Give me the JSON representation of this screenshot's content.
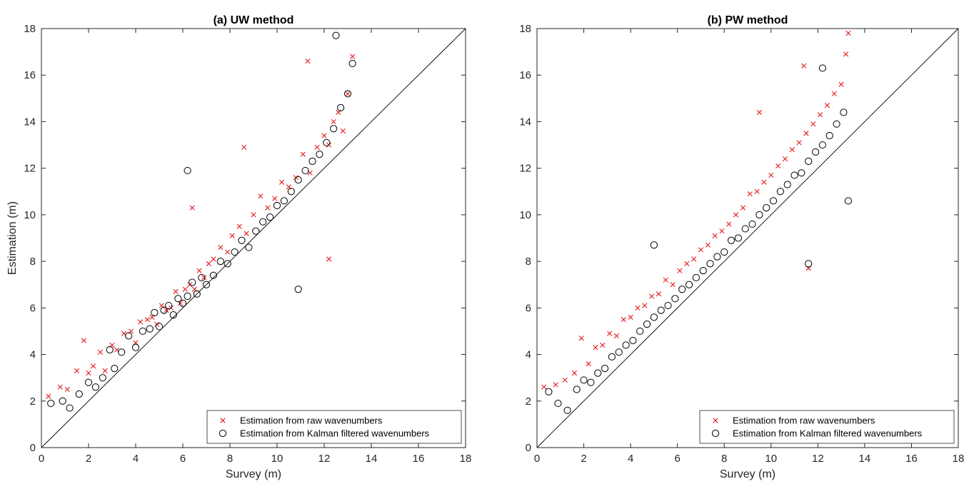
{
  "chart_data": [
    {
      "type": "scatter",
      "title": "(a) UW method",
      "xlabel": "Survey (m)",
      "ylabel": "Estimation (m)",
      "xlim": [
        0,
        18
      ],
      "ylim": [
        0,
        18
      ],
      "xticks": [
        0,
        2,
        4,
        6,
        8,
        10,
        12,
        14,
        16,
        18
      ],
      "yticks": [
        0,
        2,
        4,
        6,
        8,
        10,
        12,
        14,
        16,
        18
      ],
      "reference_line": {
        "from": [
          0,
          0
        ],
        "to": [
          18,
          18
        ]
      },
      "legend_position": "bottom-right",
      "legend": [
        "Estimation from raw wavenumbers",
        "Estimation from Kalman filtered wavenumbers"
      ],
      "series": [
        {
          "name": "Estimation from raw wavenumbers",
          "marker": "x",
          "color": "#e41a1c",
          "x": [
            0.3,
            0.8,
            1.1,
            1.5,
            1.8,
            2.0,
            2.2,
            2.5,
            2.7,
            3.0,
            3.2,
            3.5,
            3.8,
            4.0,
            4.2,
            4.5,
            4.7,
            4.9,
            5.1,
            5.3,
            5.5,
            5.7,
            5.9,
            6.1,
            6.3,
            6.5,
            6.7,
            6.9,
            7.1,
            7.3,
            7.6,
            7.9,
            8.1,
            8.4,
            8.7,
            9.0,
            9.3,
            9.6,
            9.9,
            10.2,
            10.5,
            10.8,
            11.1,
            11.4,
            11.7,
            12.0,
            12.2,
            12.4,
            12.6,
            12.8,
            13.0,
            13.2,
            6.4,
            8.6,
            11.3,
            12.2
          ],
          "y": [
            2.2,
            2.6,
            2.5,
            3.3,
            4.6,
            3.2,
            3.5,
            4.1,
            3.3,
            4.4,
            4.2,
            4.9,
            5.0,
            4.5,
            5.4,
            5.5,
            5.6,
            5.3,
            6.1,
            5.9,
            6.0,
            6.7,
            6.2,
            6.8,
            7.0,
            6.8,
            7.6,
            7.3,
            7.9,
            8.1,
            8.6,
            8.4,
            9.1,
            9.5,
            9.2,
            10.0,
            10.8,
            10.3,
            10.7,
            11.4,
            11.2,
            11.6,
            12.6,
            11.8,
            12.9,
            13.4,
            13.0,
            14.0,
            14.4,
            13.6,
            15.2,
            16.8,
            10.3,
            12.9,
            16.6,
            8.1
          ]
        },
        {
          "name": "Estimation from Kalman filtered wavenumbers",
          "marker": "o",
          "color": "#000000",
          "x": [
            0.4,
            0.9,
            1.2,
            1.6,
            2.0,
            2.3,
            2.6,
            2.9,
            3.1,
            3.4,
            3.7,
            4.0,
            4.3,
            4.6,
            4.8,
            5.0,
            5.2,
            5.4,
            5.6,
            5.8,
            6.0,
            6.2,
            6.4,
            6.6,
            6.8,
            7.0,
            7.3,
            7.6,
            7.9,
            8.2,
            8.5,
            8.8,
            9.1,
            9.4,
            9.7,
            10.0,
            10.3,
            10.6,
            10.9,
            11.2,
            11.5,
            11.8,
            12.1,
            12.4,
            12.7,
            13.0,
            13.2,
            6.2,
            10.9,
            12.5
          ],
          "y": [
            1.9,
            2.0,
            1.7,
            2.3,
            2.8,
            2.6,
            3.0,
            4.2,
            3.4,
            4.1,
            4.8,
            4.3,
            5.0,
            5.1,
            5.8,
            5.2,
            5.9,
            6.1,
            5.7,
            6.4,
            6.2,
            6.5,
            7.1,
            6.6,
            7.3,
            7.0,
            7.4,
            8.0,
            7.9,
            8.4,
            8.9,
            8.6,
            9.3,
            9.7,
            9.9,
            10.4,
            10.6,
            11.0,
            11.5,
            11.9,
            12.3,
            12.6,
            13.1,
            13.7,
            14.6,
            15.2,
            16.5,
            11.9,
            6.8,
            17.7
          ]
        }
      ]
    },
    {
      "type": "scatter",
      "title": "(b) PW method",
      "xlabel": "Survey (m)",
      "ylabel": "",
      "xlim": [
        0,
        18
      ],
      "ylim": [
        0,
        18
      ],
      "xticks": [
        0,
        2,
        4,
        6,
        8,
        10,
        12,
        14,
        16,
        18
      ],
      "yticks": [
        0,
        2,
        4,
        6,
        8,
        10,
        12,
        14,
        16,
        18
      ],
      "reference_line": {
        "from": [
          0,
          0
        ],
        "to": [
          18,
          18
        ]
      },
      "legend_position": "bottom-right",
      "legend": [
        "Estimation from raw wavenumbers",
        "Estimation from Kalman filtered wavenumbers"
      ],
      "series": [
        {
          "name": "Estimation from raw wavenumbers",
          "marker": "x",
          "color": "#e41a1c",
          "x": [
            0.3,
            0.8,
            1.2,
            1.6,
            1.9,
            2.2,
            2.5,
            2.8,
            3.1,
            3.4,
            3.7,
            4.0,
            4.3,
            4.6,
            4.9,
            5.2,
            5.5,
            5.8,
            6.1,
            6.4,
            6.7,
            7.0,
            7.3,
            7.6,
            7.9,
            8.2,
            8.5,
            8.8,
            9.1,
            9.4,
            9.7,
            10.0,
            10.3,
            10.6,
            10.9,
            11.2,
            11.5,
            11.8,
            12.1,
            12.4,
            12.7,
            13.0,
            13.2,
            9.5,
            11.4,
            13.3,
            11.6
          ],
          "y": [
            2.6,
            2.7,
            2.9,
            3.2,
            4.7,
            3.6,
            4.3,
            4.4,
            4.9,
            4.8,
            5.5,
            5.6,
            6.0,
            6.1,
            6.5,
            6.6,
            7.2,
            7.0,
            7.6,
            7.9,
            8.1,
            8.5,
            8.7,
            9.1,
            9.3,
            9.6,
            10.0,
            10.3,
            10.9,
            11.0,
            11.4,
            11.7,
            12.1,
            12.4,
            12.8,
            13.1,
            13.5,
            13.9,
            14.3,
            14.7,
            15.2,
            15.6,
            16.9,
            14.4,
            16.4,
            17.8,
            7.7
          ]
        },
        {
          "name": "Estimation from Kalman filtered wavenumbers",
          "marker": "o",
          "color": "#000000",
          "x": [
            0.5,
            0.9,
            1.3,
            1.7,
            2.0,
            2.3,
            2.6,
            2.9,
            3.2,
            3.5,
            3.8,
            4.1,
            4.4,
            4.7,
            5.0,
            5.3,
            5.6,
            5.9,
            6.2,
            6.5,
            6.8,
            7.1,
            7.4,
            7.7,
            8.0,
            8.3,
            8.6,
            8.9,
            9.2,
            9.5,
            9.8,
            10.1,
            10.4,
            10.7,
            11.0,
            11.3,
            11.6,
            11.9,
            12.2,
            12.5,
            12.8,
            13.1,
            13.3,
            5.0,
            11.6,
            12.2
          ],
          "y": [
            2.4,
            1.9,
            1.6,
            2.5,
            2.9,
            2.8,
            3.2,
            3.4,
            3.9,
            4.1,
            4.4,
            4.6,
            5.0,
            5.3,
            5.6,
            5.9,
            6.1,
            6.4,
            6.8,
            7.0,
            7.3,
            7.6,
            7.9,
            8.2,
            8.4,
            8.9,
            9.0,
            9.4,
            9.6,
            10.0,
            10.3,
            10.6,
            11.0,
            11.3,
            11.7,
            11.8,
            12.3,
            12.7,
            13.0,
            13.4,
            13.9,
            14.4,
            10.6,
            8.7,
            7.9,
            16.3
          ]
        }
      ]
    }
  ]
}
